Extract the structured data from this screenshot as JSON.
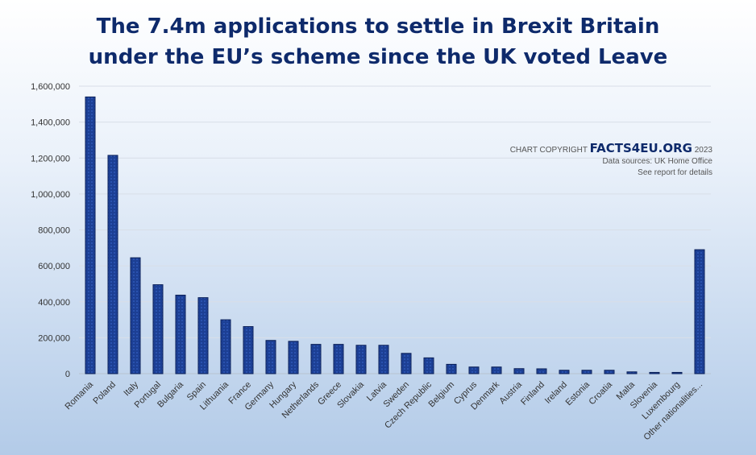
{
  "title_line1": "The 7.4m applications to settle in Brexit Britain",
  "title_line2": "under the EU’s scheme since the UK voted Leave",
  "copyright": {
    "prefix": "CHART COPYRIGHT",
    "brand": "FACTS4EU.ORG",
    "year": "2023",
    "source": "Data sources: UK Home Office",
    "note": "See report for details"
  },
  "colors": {
    "bar": "#1c3f94",
    "bar_edge": "#0a1f57",
    "grid": "#d8dee8"
  },
  "chart_data": {
    "type": "bar",
    "title": "The 7.4m applications to settle in Brexit Britain under the EU’s scheme since the UK voted Leave",
    "xlabel": "",
    "ylabel": "",
    "ylim": [
      0,
      1600000
    ],
    "yticks": [
      0,
      200000,
      400000,
      600000,
      800000,
      1000000,
      1200000,
      1400000,
      1600000
    ],
    "ytick_labels": [
      "0",
      "200,000",
      "400,000",
      "600,000",
      "800,000",
      "1,000,000",
      "1,200,000",
      "1,400,000",
      "1,600,000"
    ],
    "grid": true,
    "categories": [
      "Romania",
      "Poland",
      "Italy",
      "Portugal",
      "Bulgaria",
      "Spain",
      "Lithuania",
      "France",
      "Germany",
      "Hungary",
      "Netherlands",
      "Greece",
      "Slovakia",
      "Latvia",
      "Sweden",
      "Czech Republic",
      "Belgium",
      "Cyprus",
      "Denmark",
      "Austria",
      "Finland",
      "Ireland",
      "Estonia",
      "Croatia",
      "Malta",
      "Slovenia",
      "Luxembourg",
      "Other nationalities..."
    ],
    "values": [
      1540000,
      1215000,
      645000,
      495000,
      437000,
      423000,
      300000,
      262000,
      185000,
      180000,
      163000,
      163000,
      158000,
      158000,
      113000,
      88000,
      52000,
      37000,
      37000,
      28000,
      27000,
      19000,
      19000,
      19000,
      10000,
      7000,
      7000,
      690000
    ]
  }
}
